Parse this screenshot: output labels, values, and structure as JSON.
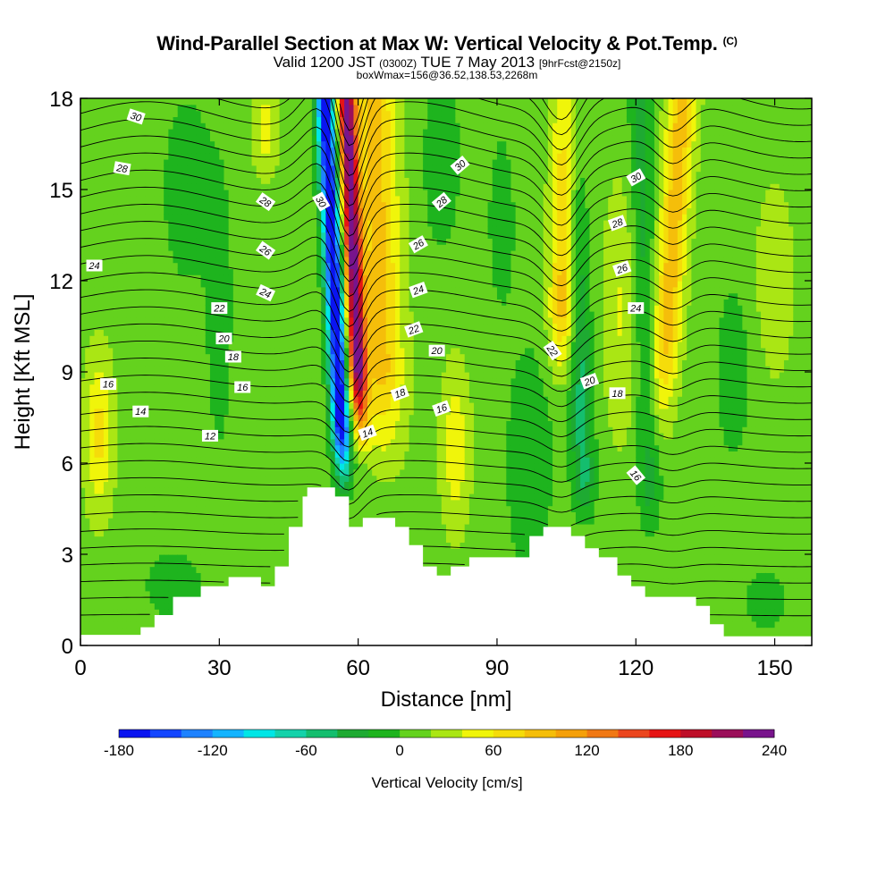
{
  "header": {
    "title": "Wind-Parallel Section at Max W: Vertical Velocity & Pot.Temp.",
    "copyright": "(C)",
    "valid_prefix": "Valid 1200 JST",
    "valid_utc": "(0300Z)",
    "valid_date": "TUE 7 May 2013",
    "forecast_info": "[9hrFcst@2150z]",
    "box_info": "boxWmax=156@36.52,138.53,2268m"
  },
  "chart_data": {
    "type": "heatmap",
    "xlabel": "Distance [nm]",
    "ylabel": "Height [Kft MSL]",
    "xlim": [
      0,
      158
    ],
    "ylim": [
      0,
      18
    ],
    "xticks": [
      0,
      30,
      60,
      90,
      120,
      150
    ],
    "xtick_labels": [
      "0",
      "30",
      "60",
      "90",
      "120",
      "150"
    ],
    "yticks": [
      0,
      3,
      6,
      9,
      12,
      15,
      18
    ],
    "ytick_labels": [
      "0",
      "3",
      "6",
      "9",
      "12",
      "15",
      "18"
    ],
    "colorbar": {
      "label": "Vertical Velocity [cm/s]",
      "min": -180,
      "max": 240,
      "step": 20,
      "tick_values": [
        -180,
        -120,
        -60,
        0,
        60,
        120,
        180,
        240
      ],
      "tick_labels": [
        "-180",
        "-120",
        "-60",
        "0",
        "60",
        "120",
        "180",
        "240"
      ],
      "colors": [
        "#0a14f0",
        "#1446ff",
        "#1e82ff",
        "#14b4ff",
        "#00e6e6",
        "#14d2aa",
        "#14be6e",
        "#1eaa32",
        "#1eb41e",
        "#64d21e",
        "#aae614",
        "#f0f50a",
        "#f5dc0a",
        "#f5be0a",
        "#f5a00a",
        "#f07814",
        "#eb461e",
        "#e61414",
        "#be0f28",
        "#9b0f5a",
        "#78148c"
      ]
    },
    "contour_variable": "Potential Temperature",
    "contour_labels": [
      {
        "text": "30",
        "x": 12,
        "y": 17.4,
        "angle": 18
      },
      {
        "text": "28",
        "x": 9,
        "y": 15.7,
        "angle": 10
      },
      {
        "text": "24",
        "x": 3,
        "y": 12.5,
        "angle": 0
      },
      {
        "text": "28",
        "x": 40,
        "y": 14.6,
        "angle": 35
      },
      {
        "text": "30",
        "x": 52,
        "y": 14.6,
        "angle": 60
      },
      {
        "text": "26",
        "x": 40,
        "y": 13.0,
        "angle": 35
      },
      {
        "text": "24",
        "x": 40,
        "y": 11.6,
        "angle": 25
      },
      {
        "text": "22",
        "x": 30,
        "y": 11.1,
        "angle": 0
      },
      {
        "text": "20",
        "x": 31,
        "y": 10.1,
        "angle": 0
      },
      {
        "text": "18",
        "x": 33,
        "y": 9.5,
        "angle": 0
      },
      {
        "text": "16",
        "x": 6,
        "y": 8.6,
        "angle": 0
      },
      {
        "text": "16",
        "x": 35,
        "y": 8.5,
        "angle": 0
      },
      {
        "text": "14",
        "x": 13,
        "y": 7.7,
        "angle": 0
      },
      {
        "text": "12",
        "x": 28,
        "y": 6.9,
        "angle": 0
      },
      {
        "text": "30",
        "x": 82,
        "y": 15.8,
        "angle": -40
      },
      {
        "text": "28",
        "x": 78,
        "y": 14.6,
        "angle": -40
      },
      {
        "text": "26",
        "x": 73,
        "y": 13.2,
        "angle": -30
      },
      {
        "text": "24",
        "x": 73,
        "y": 11.7,
        "angle": -20
      },
      {
        "text": "22",
        "x": 72,
        "y": 10.4,
        "angle": -20
      },
      {
        "text": "20",
        "x": 77,
        "y": 9.7,
        "angle": 0
      },
      {
        "text": "18",
        "x": 69,
        "y": 8.3,
        "angle": -20
      },
      {
        "text": "16",
        "x": 78,
        "y": 7.8,
        "angle": -20
      },
      {
        "text": "14",
        "x": 62,
        "y": 7.0,
        "angle": -20
      },
      {
        "text": "30",
        "x": 120,
        "y": 15.4,
        "angle": -30
      },
      {
        "text": "28",
        "x": 116,
        "y": 13.9,
        "angle": -20
      },
      {
        "text": "26",
        "x": 117,
        "y": 12.4,
        "angle": -20
      },
      {
        "text": "24",
        "x": 120,
        "y": 11.1,
        "angle": 0
      },
      {
        "text": "22",
        "x": 102,
        "y": 9.7,
        "angle": 55
      },
      {
        "text": "20",
        "x": 110,
        "y": 8.7,
        "angle": -20
      },
      {
        "text": "18",
        "x": 116,
        "y": 8.3,
        "angle": 0
      },
      {
        "text": "16",
        "x": 120,
        "y": 5.6,
        "angle": 50
      }
    ]
  }
}
